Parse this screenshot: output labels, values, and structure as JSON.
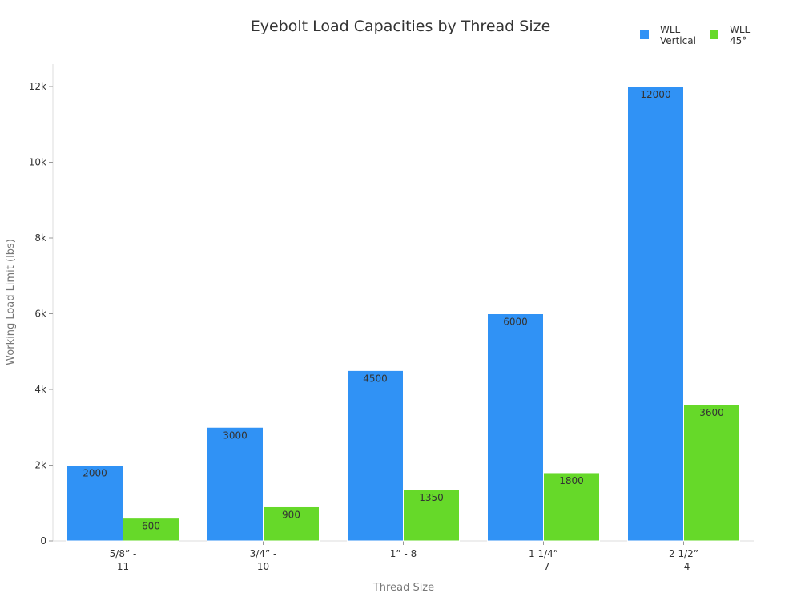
{
  "chart_data": {
    "type": "bar",
    "title": "Eyebolt Load Capacities by Thread Size",
    "xlabel": "Thread Size",
    "ylabel": "Working Load Limit (lbs)",
    "categories": [
      [
        "5/8” -",
        "11"
      ],
      [
        "3/4” -",
        "10"
      ],
      [
        "1” - 8"
      ],
      [
        "1 1/4”",
        "- 7"
      ],
      [
        "2 1/2”",
        "- 4"
      ]
    ],
    "series": [
      {
        "name": [
          "WLL",
          "Vertical"
        ],
        "color": "#3092f5",
        "values": [
          2000,
          3000,
          4500,
          6000,
          12000
        ]
      },
      {
        "name": [
          "WLL",
          "45°"
        ],
        "color": "#66d929",
        "values": [
          600,
          900,
          1350,
          1800,
          3600
        ]
      }
    ],
    "ylim": [
      0,
      12700
    ],
    "yticks": [
      0,
      2000,
      4000,
      6000,
      8000,
      10000,
      12000
    ],
    "ytick_labels": [
      "0",
      "2k",
      "4k",
      "6k",
      "8k",
      "10k",
      "12k"
    ],
    "legend": "top-right",
    "grid": false
  }
}
